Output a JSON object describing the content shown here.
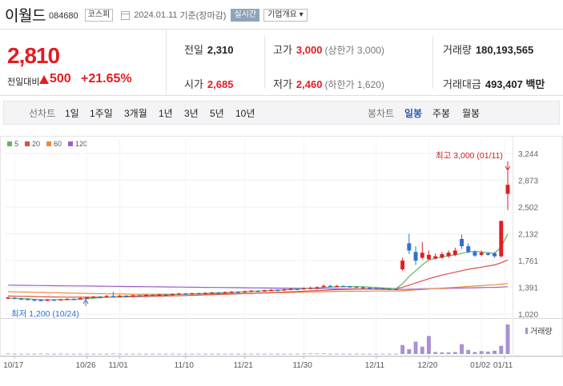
{
  "header": {
    "name": "이월드",
    "code": "084680",
    "market": "코스피",
    "date": "2024.01.11",
    "basis": "기준(장마감)",
    "realtime": "실시간",
    "company_info": "기업개요 ▾"
  },
  "price": {
    "current": "2,810",
    "change_label": "전일대비",
    "change_amount": "500",
    "change_percent": "+21.65%"
  },
  "stats": {
    "prev_label": "전일",
    "prev": "2,310",
    "open_label": "시가",
    "open": "2,685",
    "high_label": "고가",
    "high": "3,000",
    "high_sub": "(상한가 3,000)",
    "low_label": "저가",
    "low": "2,460",
    "low_sub": "(하한가 1,620)",
    "volume_label": "거래량",
    "volume": "180,193,565",
    "amount_label": "거래대금",
    "amount": "493,407 백만"
  },
  "toolbar": {
    "line_chart": "선차트",
    "periods": [
      "1일",
      "1주일",
      "3개월",
      "1년",
      "3년",
      "5년",
      "10년"
    ],
    "candle_chart": "봉차트",
    "candle_periods": [
      "일봉",
      "주봉",
      "월봉"
    ],
    "active_candle": "일봉"
  },
  "colors": {
    "up": "#e31c23",
    "down": "#2f6fd6",
    "ma5": "#5cb85c",
    "ma20": "#e04b4b",
    "ma60": "#f0883a",
    "ma120": "#9b5fc8",
    "volume": "#a892d0"
  },
  "chart_data": {
    "type": "candlestick",
    "legend": [
      {
        "name": "5",
        "color": "#5cb85c"
      },
      {
        "name": "20",
        "color": "#e04b4b"
      },
      {
        "name": "60",
        "color": "#f0883a"
      },
      {
        "name": "120",
        "color": "#9b5fc8"
      }
    ],
    "y_ticks": [
      "3,244",
      "2,873",
      "2,502",
      "2,132",
      "1,761",
      "1,391",
      "1,020"
    ],
    "x_ticks": [
      "10/17",
      "10/26",
      "11/01",
      "11/10",
      "11/21",
      "11/30",
      "12/11",
      "12/20",
      "01/02",
      "01/11"
    ],
    "ylim": [
      1020,
      3244
    ],
    "high_annotation": "최고 3,000 (01/11)",
    "low_annotation": "최저 1,200 (10/24)",
    "volume_label": "거래량",
    "candles": [
      {
        "o": 1240,
        "c": 1250,
        "h": 1260,
        "l": 1230
      },
      {
        "o": 1245,
        "c": 1235,
        "h": 1255,
        "l": 1225
      },
      {
        "o": 1235,
        "c": 1230,
        "h": 1245,
        "l": 1220
      },
      {
        "o": 1230,
        "c": 1220,
        "h": 1240,
        "l": 1210
      },
      {
        "o": 1220,
        "c": 1215,
        "h": 1230,
        "l": 1205
      },
      {
        "o": 1215,
        "c": 1210,
        "h": 1225,
        "l": 1200
      },
      {
        "o": 1210,
        "c": 1220,
        "h": 1228,
        "l": 1200
      },
      {
        "o": 1220,
        "c": 1215,
        "h": 1230,
        "l": 1208
      },
      {
        "o": 1215,
        "c": 1225,
        "h": 1232,
        "l": 1210
      },
      {
        "o": 1225,
        "c": 1230,
        "h": 1240,
        "l": 1218
      },
      {
        "o": 1230,
        "c": 1228,
        "h": 1238,
        "l": 1220
      },
      {
        "o": 1228,
        "c": 1240,
        "h": 1248,
        "l": 1222
      },
      {
        "o": 1240,
        "c": 1250,
        "h": 1258,
        "l": 1235
      },
      {
        "o": 1250,
        "c": 1262,
        "h": 1270,
        "l": 1245
      },
      {
        "o": 1262,
        "c": 1258,
        "h": 1272,
        "l": 1250
      },
      {
        "o": 1258,
        "c": 1270,
        "h": 1285,
        "l": 1252
      },
      {
        "o": 1270,
        "c": 1268,
        "h": 1330,
        "l": 1260
      },
      {
        "o": 1268,
        "c": 1275,
        "h": 1285,
        "l": 1262
      },
      {
        "o": 1275,
        "c": 1272,
        "h": 1282,
        "l": 1265
      },
      {
        "o": 1272,
        "c": 1280,
        "h": 1290,
        "l": 1268
      },
      {
        "o": 1280,
        "c": 1276,
        "h": 1288,
        "l": 1270
      },
      {
        "o": 1276,
        "c": 1285,
        "h": 1295,
        "l": 1272
      },
      {
        "o": 1285,
        "c": 1282,
        "h": 1292,
        "l": 1276
      },
      {
        "o": 1282,
        "c": 1290,
        "h": 1300,
        "l": 1278
      },
      {
        "o": 1290,
        "c": 1288,
        "h": 1298,
        "l": 1282
      },
      {
        "o": 1288,
        "c": 1298,
        "h": 1308,
        "l": 1284
      },
      {
        "o": 1298,
        "c": 1305,
        "h": 1315,
        "l": 1292
      },
      {
        "o": 1305,
        "c": 1300,
        "h": 1312,
        "l": 1295
      },
      {
        "o": 1300,
        "c": 1308,
        "h": 1318,
        "l": 1296
      },
      {
        "o": 1308,
        "c": 1304,
        "h": 1316,
        "l": 1298
      },
      {
        "o": 1304,
        "c": 1312,
        "h": 1322,
        "l": 1300
      },
      {
        "o": 1312,
        "c": 1318,
        "h": 1328,
        "l": 1306
      },
      {
        "o": 1318,
        "c": 1314,
        "h": 1326,
        "l": 1308
      },
      {
        "o": 1314,
        "c": 1322,
        "h": 1332,
        "l": 1310
      },
      {
        "o": 1322,
        "c": 1330,
        "h": 1340,
        "l": 1316
      },
      {
        "o": 1330,
        "c": 1326,
        "h": 1338,
        "l": 1320
      },
      {
        "o": 1326,
        "c": 1335,
        "h": 1345,
        "l": 1322
      },
      {
        "o": 1335,
        "c": 1342,
        "h": 1352,
        "l": 1330
      },
      {
        "o": 1342,
        "c": 1338,
        "h": 1350,
        "l": 1332
      },
      {
        "o": 1338,
        "c": 1348,
        "h": 1358,
        "l": 1334
      },
      {
        "o": 1348,
        "c": 1355,
        "h": 1365,
        "l": 1342
      },
      {
        "o": 1355,
        "c": 1352,
        "h": 1362,
        "l": 1346
      },
      {
        "o": 1352,
        "c": 1362,
        "h": 1372,
        "l": 1348
      },
      {
        "o": 1362,
        "c": 1370,
        "h": 1382,
        "l": 1356
      },
      {
        "o": 1370,
        "c": 1366,
        "h": 1378,
        "l": 1360
      },
      {
        "o": 1366,
        "c": 1378,
        "h": 1390,
        "l": 1362
      },
      {
        "o": 1378,
        "c": 1385,
        "h": 1400,
        "l": 1372
      },
      {
        "o": 1385,
        "c": 1392,
        "h": 1405,
        "l": 1378
      },
      {
        "o": 1392,
        "c": 1410,
        "h": 1430,
        "l": 1386
      },
      {
        "o": 1410,
        "c": 1405,
        "h": 1425,
        "l": 1398
      },
      {
        "o": 1405,
        "c": 1410,
        "h": 1422,
        "l": 1398
      },
      {
        "o": 1410,
        "c": 1405,
        "h": 1415,
        "l": 1398
      },
      {
        "o": 1405,
        "c": 1398,
        "h": 1412,
        "l": 1390
      },
      {
        "o": 1398,
        "c": 1392,
        "h": 1405,
        "l": 1385
      },
      {
        "o": 1392,
        "c": 1385,
        "h": 1400,
        "l": 1378
      },
      {
        "o": 1385,
        "c": 1380,
        "h": 1392,
        "l": 1372
      },
      {
        "o": 1380,
        "c": 1378,
        "h": 1388,
        "l": 1370
      },
      {
        "o": 1378,
        "c": 1372,
        "h": 1385,
        "l": 1365
      },
      {
        "o": 1372,
        "c": 1368,
        "h": 1380,
        "l": 1360
      },
      {
        "o": 1368,
        "c": 1365,
        "h": 1375,
        "l": 1358
      },
      {
        "o": 1640,
        "c": 1760,
        "h": 1800,
        "l": 1620
      },
      {
        "o": 2000,
        "c": 1900,
        "h": 2130,
        "l": 1850
      },
      {
        "o": 1880,
        "c": 1760,
        "h": 1960,
        "l": 1700
      },
      {
        "o": 1800,
        "c": 1870,
        "h": 2020,
        "l": 1780
      },
      {
        "o": 1780,
        "c": 1840,
        "h": 1900,
        "l": 1760
      },
      {
        "o": 1790,
        "c": 1820,
        "h": 1860,
        "l": 1780
      },
      {
        "o": 1800,
        "c": 1850,
        "h": 1880,
        "l": 1790
      },
      {
        "o": 1820,
        "c": 1870,
        "h": 1900,
        "l": 1800
      },
      {
        "o": 1840,
        "c": 1900,
        "h": 1940,
        "l": 1820
      },
      {
        "o": 2060,
        "c": 1960,
        "h": 2120,
        "l": 1920
      },
      {
        "o": 1960,
        "c": 1880,
        "h": 2000,
        "l": 1860
      },
      {
        "o": 1880,
        "c": 1830,
        "h": 1900,
        "l": 1810
      },
      {
        "o": 1840,
        "c": 1870,
        "h": 1900,
        "l": 1820
      },
      {
        "o": 1860,
        "c": 1840,
        "h": 1880,
        "l": 1830
      },
      {
        "o": 1860,
        "c": 1820,
        "h": 1880,
        "l": 1800
      },
      {
        "o": 1820,
        "c": 2310,
        "h": 2310,
        "l": 1800
      },
      {
        "o": 2685,
        "c": 2810,
        "h": 3000,
        "l": 2460
      }
    ],
    "ma": {
      "ma5": [
        1240,
        1238,
        1235,
        1230,
        1225,
        1220,
        1218,
        1217,
        1218,
        1220,
        1222,
        1226,
        1232,
        1240,
        1246,
        1252,
        1258,
        1262,
        1266,
        1270,
        1274,
        1277,
        1280,
        1283,
        1286,
        1290,
        1294,
        1297,
        1300,
        1303,
        1307,
        1311,
        1314,
        1318,
        1322,
        1326,
        1330,
        1335,
        1339,
        1343,
        1348,
        1352,
        1356,
        1361,
        1366,
        1370,
        1376,
        1382,
        1388,
        1393,
        1397,
        1400,
        1401,
        1400,
        1398,
        1394,
        1388,
        1382,
        1376,
        1370,
        1440,
        1540,
        1620,
        1700,
        1770,
        1790,
        1810,
        1830,
        1840,
        1860,
        1880,
        1890,
        1880,
        1870,
        1860,
        1950,
        2130
      ],
      "ma20": [
        1270,
        1268,
        1266,
        1264,
        1262,
        1260,
        1258,
        1257,
        1256,
        1255,
        1254,
        1253,
        1253,
        1253,
        1253,
        1254,
        1255,
        1256,
        1258,
        1260,
        1262,
        1264,
        1266,
        1268,
        1270,
        1272,
        1275,
        1277,
        1280,
        1282,
        1285,
        1288,
        1291,
        1294,
        1297,
        1300,
        1303,
        1307,
        1310,
        1314,
        1318,
        1321,
        1325,
        1329,
        1333,
        1337,
        1341,
        1345,
        1349,
        1353,
        1357,
        1360,
        1363,
        1366,
        1368,
        1370,
        1371,
        1372,
        1372,
        1372,
        1390,
        1420,
        1450,
        1480,
        1510,
        1535,
        1560,
        1580,
        1600,
        1620,
        1640,
        1655,
        1670,
        1685,
        1700,
        1730,
        1770
      ],
      "ma60": [
        1330,
        1328,
        1326,
        1324,
        1322,
        1320,
        1318,
        1316,
        1314,
        1312,
        1310,
        1308,
        1306,
        1304,
        1302,
        1300,
        1299,
        1298,
        1297,
        1296,
        1295,
        1295,
        1295,
        1295,
        1295,
        1296,
        1296,
        1297,
        1298,
        1299,
        1300,
        1301,
        1302,
        1303,
        1304,
        1305,
        1306,
        1308,
        1310,
        1312,
        1314,
        1316,
        1318,
        1320,
        1322,
        1324,
        1326,
        1328,
        1330,
        1332,
        1334,
        1335,
        1336,
        1337,
        1338,
        1338,
        1339,
        1339,
        1339,
        1339,
        1342,
        1348,
        1354,
        1360,
        1366,
        1372,
        1378,
        1384,
        1390,
        1396,
        1402,
        1408,
        1414,
        1420,
        1426,
        1434,
        1444
      ],
      "ma120": [
        1420,
        1419,
        1418,
        1417,
        1416,
        1415,
        1414,
        1413,
        1412,
        1411,
        1410,
        1409,
        1408,
        1407,
        1406,
        1405,
        1404,
        1403,
        1402,
        1401,
        1400,
        1399,
        1398,
        1397,
        1396,
        1395,
        1394,
        1393,
        1392,
        1391,
        1390,
        1389,
        1388,
        1387,
        1386,
        1385,
        1384,
        1383,
        1382,
        1381,
        1380,
        1379,
        1378,
        1377,
        1376,
        1375,
        1374,
        1373,
        1372,
        1371,
        1370,
        1369,
        1368,
        1367,
        1366,
        1365,
        1364,
        1363,
        1362,
        1361,
        1362,
        1364,
        1366,
        1368,
        1370,
        1372,
        1374,
        1376,
        1378,
        1380,
        1382,
        1384,
        1386,
        1388,
        1390,
        1394,
        1400
      ]
    },
    "volume": [
      3,
      2,
      2,
      2,
      2,
      3,
      2,
      2,
      2,
      2,
      2,
      2,
      2,
      2,
      2,
      2,
      3,
      2,
      2,
      2,
      2,
      2,
      2,
      2,
      2,
      2,
      2,
      2,
      2,
      2,
      2,
      2,
      2,
      2,
      2,
      2,
      2,
      2,
      2,
      2,
      2,
      2,
      2,
      2,
      2,
      3,
      3,
      3,
      3,
      2,
      2,
      2,
      2,
      2,
      2,
      2,
      2,
      2,
      2,
      2,
      55,
      30,
      75,
      45,
      110,
      12,
      10,
      10,
      12,
      60,
      25,
      12,
      18,
      15,
      20,
      50,
      180
    ]
  }
}
